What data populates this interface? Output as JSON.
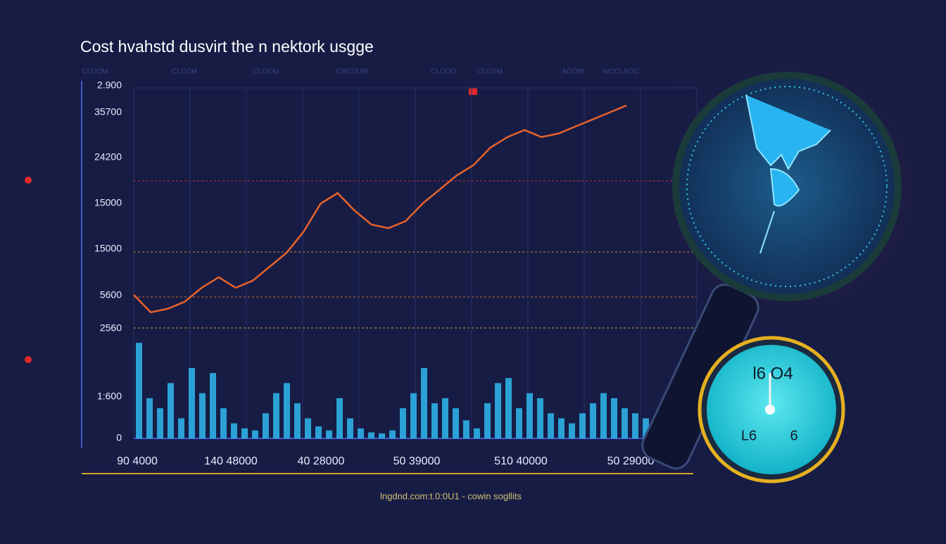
{
  "header": {
    "title": "Cost hvahstd dusvirt the n nektork usgge"
  },
  "column_labels": [
    "CLOOM",
    "CLCOM",
    "CLOOM",
    "CRCOUM",
    "CLCOO",
    "CLCOM",
    "ACOW",
    "WCCLAOC"
  ],
  "ytick_labels": [
    "2.900",
    "35700",
    "24200",
    "15000",
    "15000",
    "5600",
    "2560",
    "1:600",
    "0"
  ],
  "xtick_labels": [
    "90 4000",
    "140 48000",
    "40 28000",
    "50 39000",
    "510 40000",
    "50 29000"
  ],
  "legend_text": "lngdnd.com:t.0:0U1 - cowin sogllits",
  "gauge": {
    "top_text": "l6 O4",
    "left_text": "L6",
    "right_text": "6"
  },
  "chart_data": [
    {
      "type": "line",
      "ylim": [
        0,
        100
      ],
      "grid": true,
      "series": [
        {
          "name": "cost",
          "color": "#e8632a",
          "values": [
            41,
            36,
            37,
            39,
            43,
            46,
            43,
            45,
            49,
            53,
            59,
            67,
            70,
            65,
            61,
            60,
            62,
            67,
            71,
            75,
            78,
            83,
            86,
            88,
            86,
            87,
            89,
            91,
            93,
            95
          ]
        }
      ]
    },
    {
      "type": "bar",
      "ylim": [
        0,
        100
      ],
      "color": "#2fb8f0",
      "values": [
        95,
        40,
        30,
        55,
        20,
        70,
        45,
        65,
        30,
        15,
        10,
        8,
        25,
        45,
        55,
        35,
        20,
        12,
        8,
        40,
        20,
        10,
        6,
        5,
        8,
        30,
        45,
        70,
        35,
        40,
        30,
        18,
        10,
        35,
        55,
        60,
        30,
        45,
        40,
        25,
        20,
        15,
        25,
        35,
        45,
        40,
        30,
        25,
        20,
        22
      ]
    }
  ]
}
